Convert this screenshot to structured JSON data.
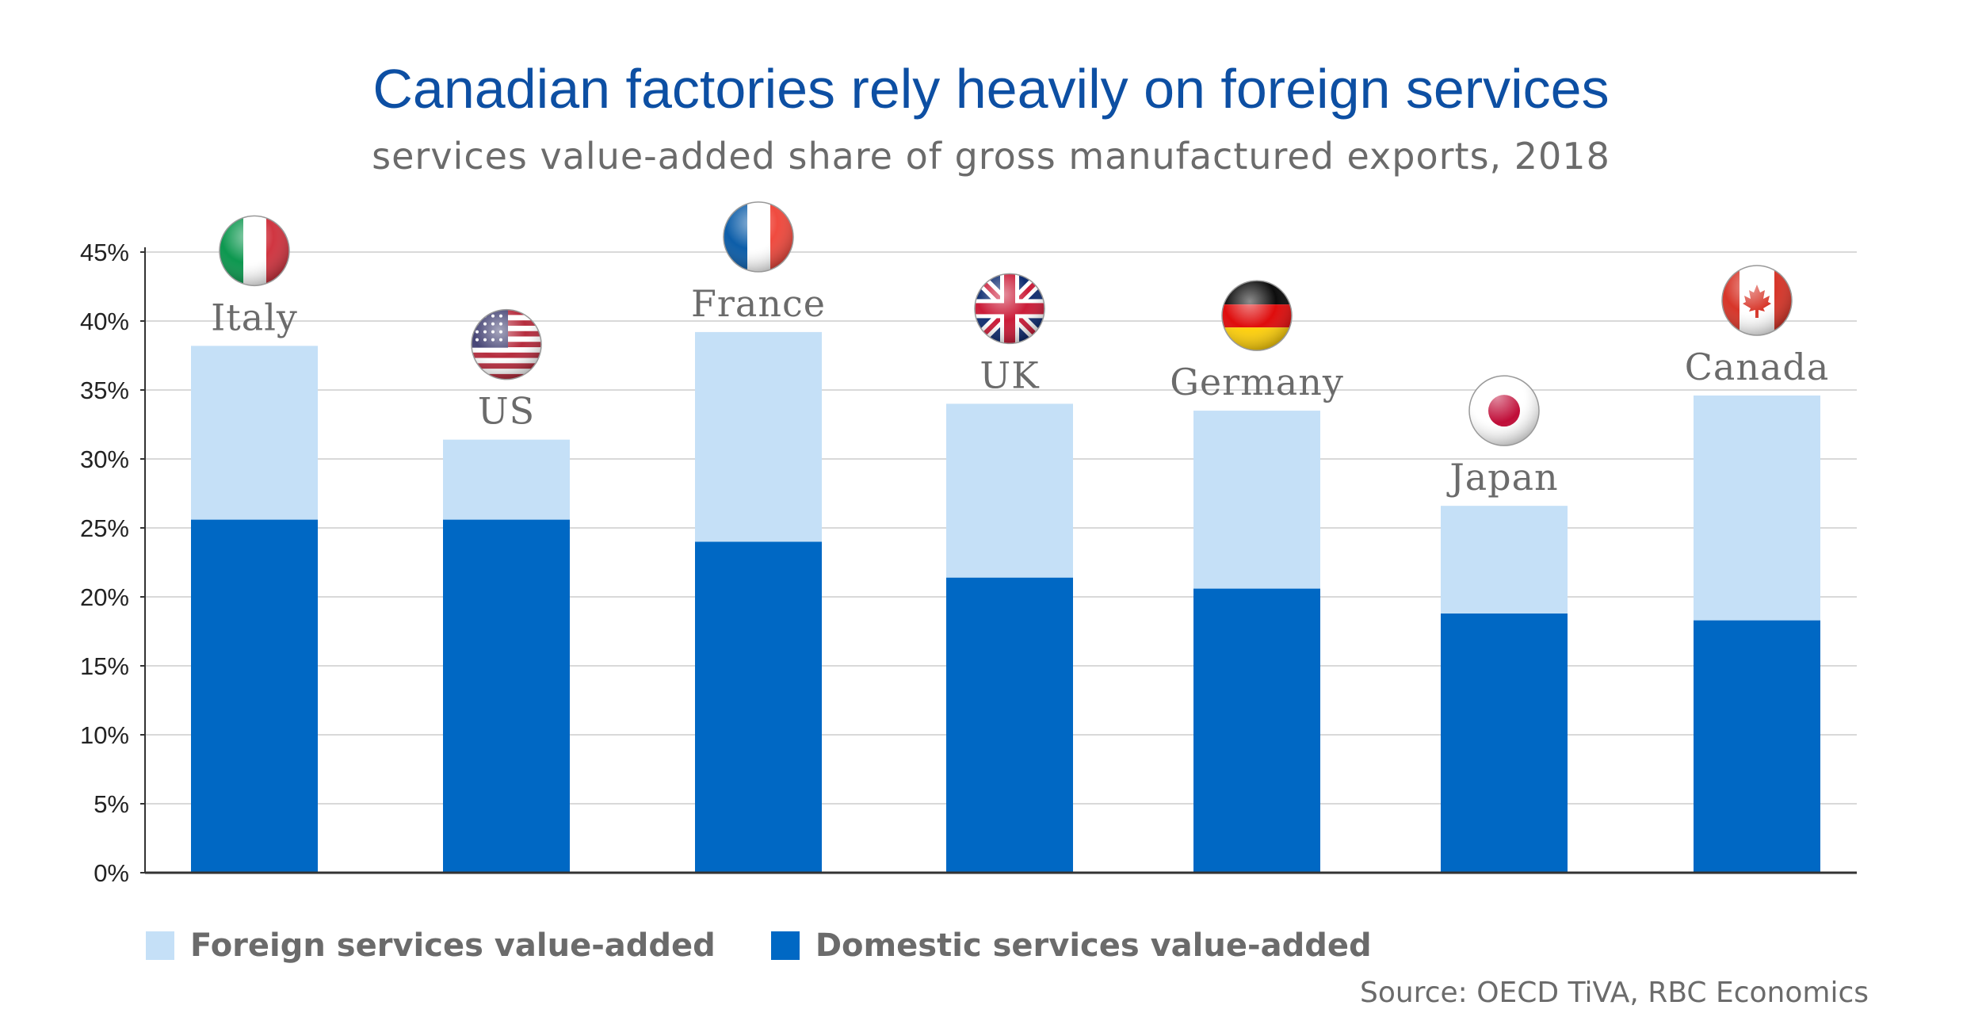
{
  "title": "Canadian factories rely heavily on foreign services",
  "subtitle": "services value-added share of gross manufactured exports, 2018",
  "source": "Source: OECD TiVA, RBC Economics",
  "colors": {
    "title": "#0d4fa3",
    "foreign": "#c5e0f7",
    "domestic": "#0068c4",
    "label": "#6b6b6b",
    "grid": "#d9d9d9"
  },
  "legend": {
    "foreign_label": "Foreign services value-added",
    "domestic_label": "Domestic services value-added"
  },
  "chart_data": {
    "type": "bar",
    "stacked": true,
    "categories": [
      "Italy",
      "US",
      "France",
      "UK",
      "Germany",
      "Japan",
      "Canada"
    ],
    "series": [
      {
        "name": "Domestic services value-added",
        "values": [
          25.6,
          25.6,
          24.0,
          21.4,
          20.6,
          18.8,
          18.3
        ]
      },
      {
        "name": "Foreign services value-added",
        "values": [
          12.6,
          5.8,
          15.2,
          12.6,
          12.9,
          7.8,
          16.3
        ]
      }
    ],
    "ylim": [
      0,
      45
    ],
    "yticks": [
      0,
      5,
      10,
      15,
      20,
      25,
      30,
      35,
      40,
      45
    ],
    "ytick_labels": [
      "0%",
      "5%",
      "10%",
      "15%",
      "20%",
      "25%",
      "30%",
      "35%",
      "40%",
      "45%"
    ],
    "flag_icons": [
      "italy-flag-icon",
      "us-flag-icon",
      "france-flag-icon",
      "uk-flag-icon",
      "germany-flag-icon",
      "japan-flag-icon",
      "canada-flag-icon"
    ],
    "xlabel": "",
    "ylabel": ""
  }
}
